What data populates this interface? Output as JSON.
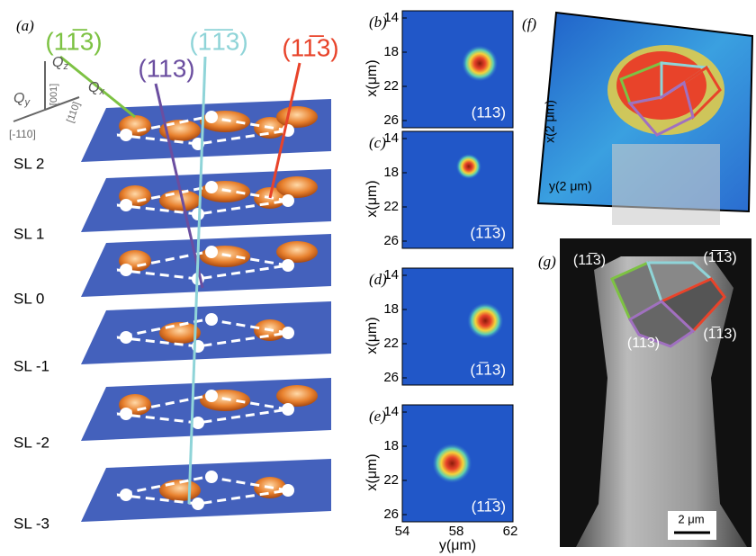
{
  "panel_a": {
    "label": "(a)",
    "facets": [
      {
        "text": "(11̅3)",
        "color": "#7dc243"
      },
      {
        "text": "(113)",
        "color": "#6b4ea0"
      },
      {
        "text": "(1̅1̅3)",
        "color": "#8fd4d8"
      },
      {
        "text": "(11̅3)",
        "color": "#e8432a"
      }
    ],
    "axes": [
      {
        "symbol": "Q",
        "subscript": "z"
      },
      {
        "symbol": "Q",
        "subscript": "y"
      },
      {
        "symbol": "Q",
        "subscript": "x"
      }
    ],
    "directions": [
      "[001]",
      "[-110]",
      "[110]"
    ],
    "layers": [
      "SL 2",
      "SL 1",
      "SL 0",
      "SL -1",
      "SL -2",
      "SL -3"
    ]
  },
  "maps": {
    "y_label": "x(μm)",
    "y_ticks": [
      "14",
      "18",
      "22",
      "26"
    ],
    "x_ticks": [
      "54",
      "58",
      "62"
    ],
    "x_label": "y(μm)",
    "panels": [
      {
        "label": "(b)",
        "facet": "(113)"
      },
      {
        "label": "(c)",
        "facet": "(1̅1̅3)"
      },
      {
        "label": "(d)",
        "facet": "(1̅13)"
      },
      {
        "label": "(e)",
        "facet": "(11̅3)"
      }
    ]
  },
  "panel_f": {
    "label": "(f)",
    "x_label": "x(2 μm)",
    "y_label": "y(2 μm)"
  },
  "panel_g": {
    "label": "(g)",
    "facets": [
      "(11̅3)",
      "(1̅1̅3)",
      "(113)",
      "(1̅13)"
    ],
    "scale": "2 μm"
  }
}
